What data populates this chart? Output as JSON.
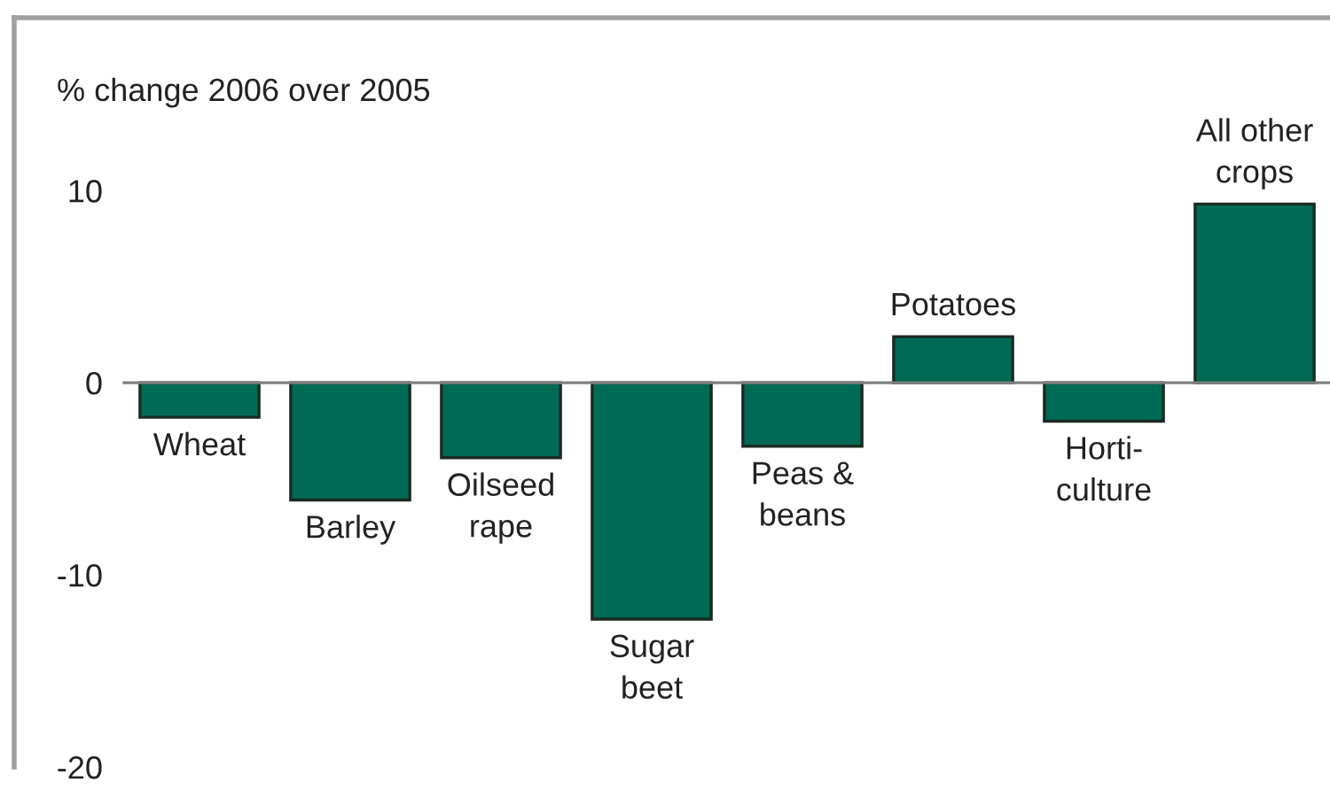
{
  "chart_data": {
    "type": "bar",
    "ylabel": "% change 2006 over 2005",
    "categories": [
      "Wheat",
      "Barley",
      "Oilseed\nrape",
      "Sugar\nbeet",
      "Peas &\nbeans",
      "Potatoes",
      "Horti-\nculture",
      "All other\ncrops"
    ],
    "values": [
      -1.8,
      -6.1,
      -3.9,
      -12.3,
      -3.3,
      2.4,
      -2.0,
      9.3
    ],
    "color": "#006b54",
    "ylim": [
      -20,
      19
    ],
    "yticks": [
      -20,
      -10,
      0,
      10
    ],
    "grid": false
  }
}
